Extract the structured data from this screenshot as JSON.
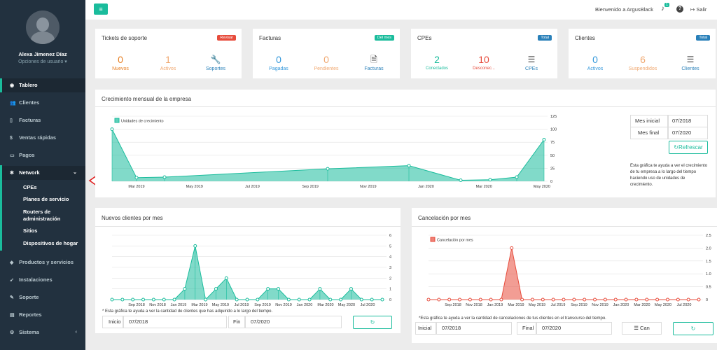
{
  "sidebar": {
    "user_name": "Alexa Jimenez Díaz",
    "user_options": "Opciones de usuario ▾",
    "items": [
      {
        "icon": "gauge-icon",
        "glyph": "◉",
        "label": "Tablero"
      },
      {
        "icon": "users-icon",
        "glyph": "👥",
        "label": "Clientes"
      },
      {
        "icon": "file-icon",
        "glyph": "▯",
        "label": "Facturas"
      },
      {
        "icon": "dollar-icon",
        "glyph": "$",
        "label": "Ventas rápidas"
      },
      {
        "icon": "money-icon",
        "glyph": "▭",
        "label": "Pagos"
      },
      {
        "icon": "network-icon",
        "glyph": "✻",
        "label": "Network"
      },
      {
        "icon": "tags-icon",
        "glyph": "◆",
        "label": "Productos y servicios"
      },
      {
        "icon": "rocket-icon",
        "glyph": "➹",
        "label": "Instalaciones"
      },
      {
        "icon": "wrench-icon",
        "glyph": "✎",
        "label": "Soporte"
      },
      {
        "icon": "book-icon",
        "glyph": "▤",
        "label": "Reportes"
      },
      {
        "icon": "cogs-icon",
        "glyph": "⚙",
        "label": "Sistema"
      }
    ],
    "network_sub": [
      "CPEs",
      "Planes de servicio",
      "Routers de administración",
      "Sitios",
      "Dispositivos de hogar"
    ],
    "network_caret": "‹",
    "sistema_caret": "‹"
  },
  "topbar": {
    "welcome": "Bienvenido a ArgusBlack",
    "notif_count": "1",
    "help": "?",
    "logout": "Salir"
  },
  "cards": [
    {
      "title": "Tickets de soporte",
      "badge": "Revisar",
      "badge_color": "#e74c3c",
      "stats": [
        {
          "n": "0",
          "l": "Nuevos",
          "c": "#e67e22"
        },
        {
          "n": "1",
          "l": "Activos",
          "c": "#f0a870"
        }
      ],
      "link": "Soportes",
      "link_icon": "wrench-icon",
      "link_color": "#2980b9"
    },
    {
      "title": "Facturas",
      "badge": "Del mes",
      "badge_color": "#1abc9c",
      "stats": [
        {
          "n": "0",
          "l": "Pagadas",
          "c": "#3498db"
        },
        {
          "n": "0",
          "l": "Pendientes",
          "c": "#f0a870"
        }
      ],
      "link": "Facturas",
      "link_icon": "file-text-icon",
      "link_color": "#2980b9"
    },
    {
      "title": "CPEs",
      "badge": "Total",
      "badge_color": "#2980b9",
      "stats": [
        {
          "n": "2",
          "l": "Conectados",
          "c": "#1abc9c"
        },
        {
          "n": "10",
          "l": "Desconec...",
          "c": "#e74c3c"
        }
      ],
      "link": "CPEs",
      "link_icon": "list-icon",
      "link_color": "#2980b9"
    },
    {
      "title": "Clientes",
      "badge": "Total",
      "badge_color": "#2980b9",
      "stats": [
        {
          "n": "0",
          "l": "Activos",
          "c": "#3498db"
        },
        {
          "n": "6",
          "l": "Suspendidos",
          "c": "#f0a870"
        }
      ],
      "link": "Clientes",
      "link_icon": "list-icon",
      "link_color": "#2980b9"
    }
  ],
  "growth": {
    "title": "Crecimiento mensual de la empresa",
    "mes_inicial_label": "Mes inicial",
    "mes_inicial": "07/2018",
    "mes_final_label": "Mes final",
    "mes_final": "07/2020",
    "refresh": "Refrescar",
    "note": "Esta gráfica te ayuda a ver el crecimiento de tu empresa a lo largo del tiempo haciendo uso de unidades de crecimiento."
  },
  "newclients": {
    "title": "Nuevos clientes por mes",
    "note": "* Esta gráfica te ayuda a ver la cantidad de clientes que has adquirido a lo largo del tiempo.",
    "inicio_label": "Inicio",
    "inicio": "07/2018",
    "fin_label": "Fin",
    "fin": "07/2020"
  },
  "cancel": {
    "title": "Cancelación por mes",
    "note": "*Esta gráfica te ayuda a ver la cantidad de cancelaciones de tus clientes en el transcurso del tiempo.",
    "inicial_label": "Inicial",
    "inicial": "07/2018",
    "final_label": "Final",
    "final": "07/2020",
    "can_label": "Can"
  },
  "chart_data": [
    {
      "type": "area",
      "series": [
        {
          "name": "Unidades de crecimiento",
          "color": "#1abc9c",
          "x": [
            "Jan 2019",
            "Feb 2019",
            "Jun 2019",
            "Dec 2019",
            "Jan 2020",
            "Apr 2020",
            "Jun 2020",
            "Jul 2020",
            "Aug 2020"
          ],
          "values": [
            100,
            7,
            8,
            24,
            30,
            2,
            3,
            8,
            80
          ]
        }
      ],
      "x_ticks": [
        "Mar 2019",
        "May 2019",
        "Jul 2019",
        "Sep 2019",
        "Nov 2019",
        "Jan 2020",
        "Mar 2020",
        "May 2020"
      ],
      "y_ticks": [
        "0",
        "25",
        "50",
        "75",
        "100",
        "125"
      ],
      "ylim": [
        0,
        125
      ]
    },
    {
      "type": "area",
      "series": [
        {
          "name": "Nuevos clientes",
          "color": "#1abc9c",
          "values": [
            0,
            0,
            0,
            0,
            0,
            0,
            0,
            1,
            5,
            0,
            1,
            2,
            0,
            0,
            0,
            1,
            1,
            0,
            0,
            0,
            1,
            0,
            0,
            1,
            0,
            0,
            0
          ]
        }
      ],
      "x_ticks": [
        "Sep 2018",
        "Nov 2018",
        "Jan 2019",
        "Mar 2019",
        "May 2019",
        "Jul 2019",
        "Sep 2019",
        "Nov 2019",
        "Jan 2020",
        "Mar 2020",
        "May 2020",
        "Jul 2020"
      ],
      "y_ticks": [
        "0",
        "1",
        "2",
        "3",
        "4",
        "5",
        "6"
      ],
      "ylim": [
        0,
        6
      ]
    },
    {
      "type": "area",
      "series": [
        {
          "name": "Cancelación por mes",
          "color": "#e74c3c",
          "values": [
            0,
            0,
            0,
            0,
            0,
            0,
            0,
            0,
            2,
            0,
            0,
            0,
            0,
            0,
            0,
            0,
            0,
            0,
            0,
            0,
            0,
            0,
            0,
            0,
            0,
            0,
            0
          ]
        }
      ],
      "x_ticks": [
        "Sep 2018",
        "Nov 2018",
        "Jan 2019",
        "Mar 2019",
        "May 2019",
        "Jul 2019",
        "Sep 2019",
        "Nov 2019",
        "Jan 2020",
        "Mar 2020",
        "May 2020",
        "Jul 2020"
      ],
      "y_ticks": [
        "0",
        "0.5",
        "1.0",
        "1.5",
        "2.0",
        "2.5"
      ],
      "ylim": [
        0,
        2.5
      ]
    }
  ]
}
